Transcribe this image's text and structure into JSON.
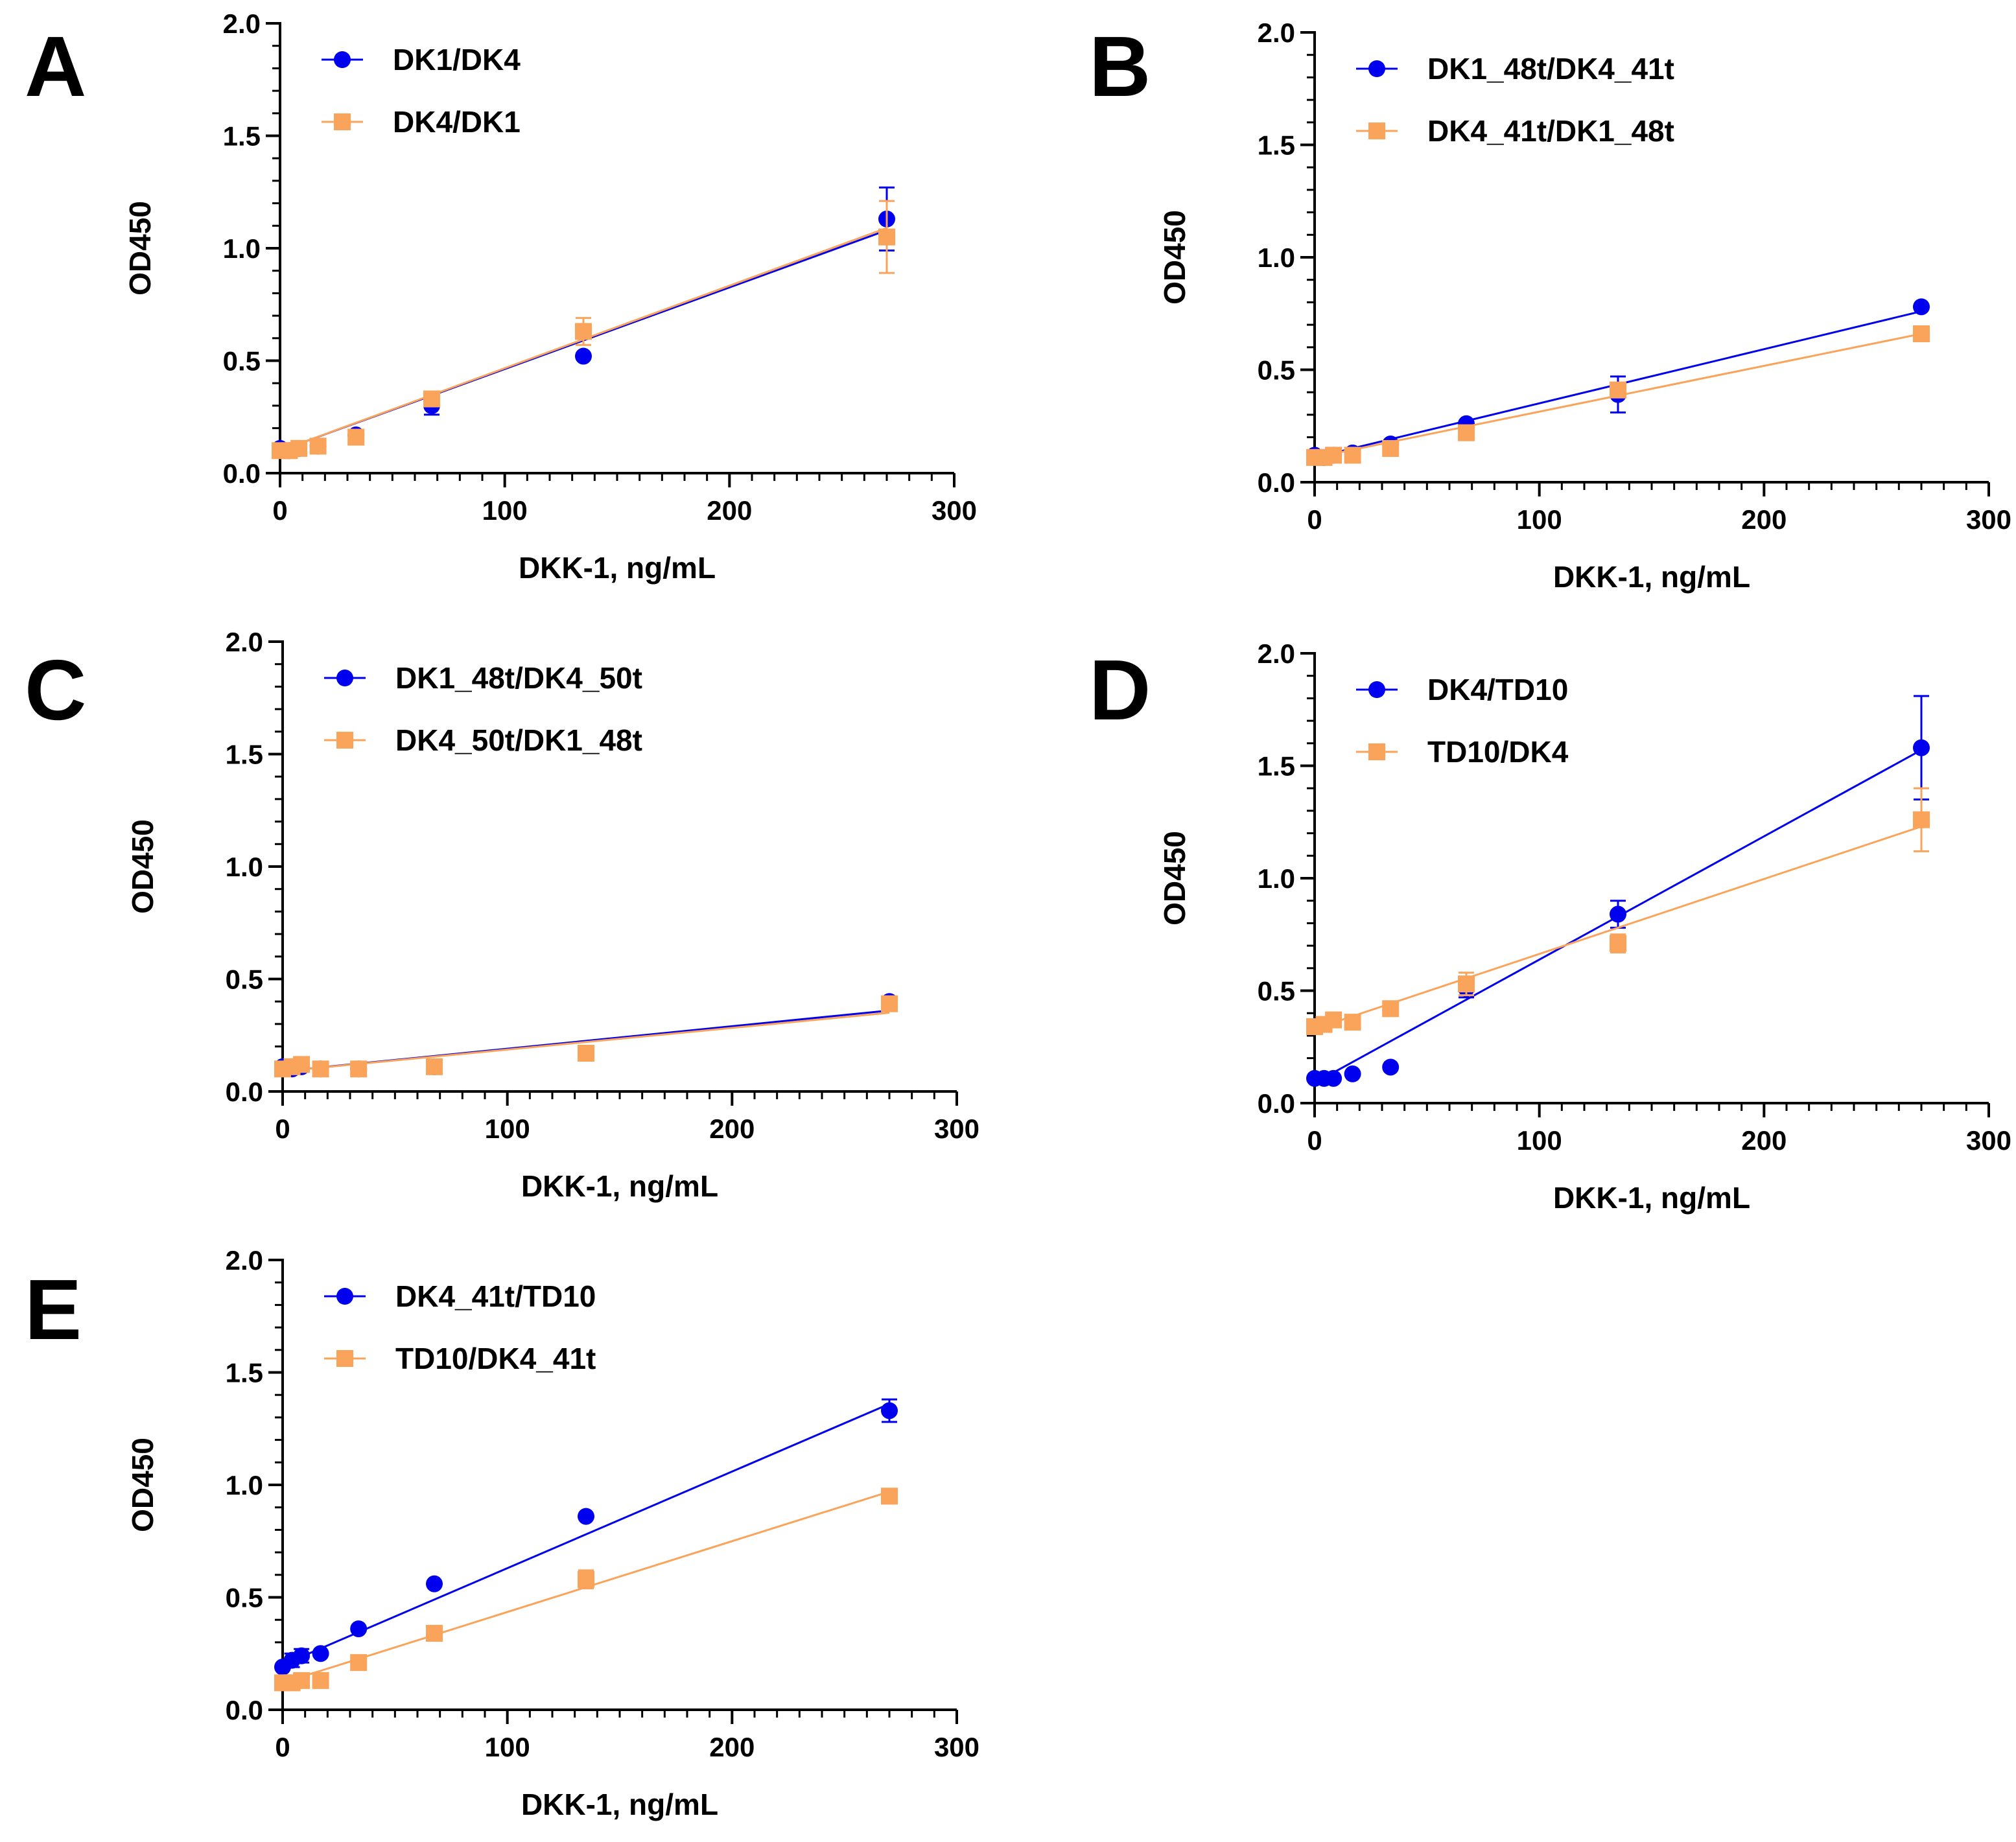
{
  "chart_data": [
    {
      "panel": "A",
      "type": "scatter",
      "xlabel": "DKK-1, ng/mL",
      "ylabel": "OD450",
      "xlim": [
        0,
        300
      ],
      "ylim": [
        0,
        2.0
      ],
      "xticks": [
        "0",
        "100",
        "200",
        "300"
      ],
      "yticks": [
        "0.0",
        "0.5",
        "1.0",
        "1.5",
        "2.0"
      ],
      "legend_position": "top-left",
      "series": [
        {
          "name": "DK1/DK4",
          "color": "#0000ee",
          "marker": "circle",
          "x": [
            0,
            4.2,
            8.4,
            16.9,
            33.8,
            67.5,
            135,
            270
          ],
          "y": [
            0.11,
            0.1,
            0.11,
            0.12,
            0.17,
            0.3,
            0.52,
            1.13
          ],
          "err": [
            0.01,
            0.01,
            0.01,
            0.01,
            0.01,
            0.04,
            0.02,
            0.14
          ],
          "fit": [
            [
              0,
              0.1
            ],
            [
              270,
              1.08
            ]
          ]
        },
        {
          "name": "DK4/DK1",
          "color": "#f9a45a",
          "marker": "square",
          "x": [
            0,
            4.2,
            8.4,
            16.9,
            33.8,
            67.5,
            135,
            270
          ],
          "y": [
            0.1,
            0.1,
            0.11,
            0.12,
            0.16,
            0.33,
            0.63,
            1.05
          ],
          "err": [
            0.01,
            0.01,
            0.01,
            0.01,
            0.01,
            0.03,
            0.06,
            0.16
          ],
          "fit": [
            [
              0,
              0.1
            ],
            [
              270,
              1.09
            ]
          ]
        }
      ]
    },
    {
      "panel": "B",
      "type": "scatter",
      "xlabel": "DKK-1, ng/mL",
      "ylabel": "OD450",
      "xlim": [
        0,
        300
      ],
      "ylim": [
        0,
        2.0
      ],
      "xticks": [
        "0",
        "100",
        "200",
        "300"
      ],
      "yticks": [
        "0.0",
        "0.5",
        "1.0",
        "1.5",
        "2.0"
      ],
      "legend_position": "top-left",
      "series": [
        {
          "name": "DK1_48t/DK4_41t",
          "color": "#0000ee",
          "marker": "circle",
          "x": [
            0,
            4.2,
            8.4,
            16.9,
            33.8,
            67.5,
            135,
            270
          ],
          "y": [
            0.12,
            0.11,
            0.12,
            0.13,
            0.17,
            0.26,
            0.39,
            0.78
          ],
          "err": [
            0.01,
            0.01,
            0.01,
            0.01,
            0.01,
            0.02,
            0.08,
            0.02
          ],
          "fit": [
            [
              0,
              0.11
            ],
            [
              270,
              0.76
            ]
          ]
        },
        {
          "name": "DK4_41t/DK1_48t",
          "color": "#f9a45a",
          "marker": "square",
          "x": [
            0,
            4.2,
            8.4,
            16.9,
            33.8,
            67.5,
            135,
            270
          ],
          "y": [
            0.11,
            0.11,
            0.12,
            0.12,
            0.15,
            0.22,
            0.41,
            0.66
          ],
          "err": [
            0.01,
            0.01,
            0.01,
            0.01,
            0.01,
            0.02,
            0.03,
            0.02
          ],
          "fit": [
            [
              0,
              0.11
            ],
            [
              270,
              0.66
            ]
          ]
        }
      ]
    },
    {
      "panel": "C",
      "type": "scatter",
      "xlabel": "DKK-1, ng/mL",
      "ylabel": "OD450",
      "xlim": [
        0,
        300
      ],
      "ylim": [
        0,
        2.0
      ],
      "xticks": [
        "0",
        "100",
        "200",
        "300"
      ],
      "yticks": [
        "0.0",
        "0.5",
        "1.0",
        "1.5",
        "2.0"
      ],
      "legend_position": "top-left",
      "series": [
        {
          "name": "DK1_48t/DK4_50t",
          "color": "#0000ee",
          "marker": "circle",
          "x": [
            0,
            4.2,
            8.4,
            16.9,
            33.8,
            67.5,
            135,
            270
          ],
          "y": [
            0.11,
            0.1,
            0.11,
            0.1,
            0.1,
            0.11,
            0.17,
            0.4
          ],
          "err": [
            0.01,
            0.01,
            0.01,
            0.01,
            0.01,
            0.01,
            0.01,
            0.02
          ],
          "fit": [
            [
              0,
              0.09
            ],
            [
              270,
              0.36
            ]
          ]
        },
        {
          "name": "DK4_50t/DK1_48t",
          "color": "#f9a45a",
          "marker": "square",
          "x": [
            0,
            4.2,
            8.4,
            16.9,
            33.8,
            67.5,
            135,
            270
          ],
          "y": [
            0.1,
            0.11,
            0.12,
            0.1,
            0.1,
            0.11,
            0.17,
            0.39
          ],
          "err": [
            0.01,
            0.02,
            0.02,
            0.01,
            0.01,
            0.01,
            0.01,
            0.02
          ],
          "fit": [
            [
              0,
              0.09
            ],
            [
              270,
              0.35
            ]
          ]
        }
      ]
    },
    {
      "panel": "D",
      "type": "scatter",
      "xlabel": "DKK-1, ng/mL",
      "ylabel": "OD450",
      "xlim": [
        0,
        300
      ],
      "ylim": [
        0,
        2.0
      ],
      "xticks": [
        "0",
        "100",
        "200",
        "300"
      ],
      "yticks": [
        "0.0",
        "0.5",
        "1.0",
        "1.5",
        "2.0"
      ],
      "legend_position": "top-left",
      "series": [
        {
          "name": "DK4/TD10",
          "color": "#0000ee",
          "marker": "circle",
          "x": [
            0,
            4.2,
            8.4,
            16.9,
            33.8,
            67.5,
            135,
            270
          ],
          "y": [
            0.11,
            0.11,
            0.11,
            0.13,
            0.16,
            0.51,
            0.84,
            1.58
          ],
          "err": [
            0.01,
            0.01,
            0.01,
            0.01,
            0.01,
            0.04,
            0.06,
            0.23
          ],
          "fit": [
            [
              0,
              0.09
            ],
            [
              270,
              1.57
            ]
          ]
        },
        {
          "name": "TD10/DK4",
          "color": "#f9a45a",
          "marker": "square",
          "x": [
            0,
            4.2,
            8.4,
            16.9,
            33.8,
            67.5,
            135,
            270
          ],
          "y": [
            0.34,
            0.35,
            0.37,
            0.36,
            0.42,
            0.53,
            0.71,
            1.26
          ],
          "err": [
            0.02,
            0.01,
            0.01,
            0.02,
            0.02,
            0.05,
            0.04,
            0.14
          ],
          "fit": [
            [
              0,
              0.33
            ],
            [
              270,
              1.23
            ]
          ]
        }
      ]
    },
    {
      "panel": "E",
      "type": "scatter",
      "xlabel": "DKK-1, ng/mL",
      "ylabel": "OD450",
      "xlim": [
        0,
        300
      ],
      "ylim": [
        0,
        2.0
      ],
      "xticks": [
        "0",
        "100",
        "200",
        "300"
      ],
      "yticks": [
        "0.0",
        "0.5",
        "1.0",
        "1.5",
        "2.0"
      ],
      "legend_position": "top-left",
      "series": [
        {
          "name": "DK4_41t/TD10",
          "color": "#0000ee",
          "marker": "circle",
          "x": [
            0,
            4.2,
            8.4,
            16.9,
            33.8,
            67.5,
            135,
            270
          ],
          "y": [
            0.19,
            0.22,
            0.24,
            0.25,
            0.36,
            0.56,
            0.86,
            1.33
          ],
          "err": [
            0.02,
            0.03,
            0.03,
            0.02,
            0.02,
            0.02,
            0.02,
            0.05
          ],
          "fit": [
            [
              0,
              0.2
            ],
            [
              270,
              1.36
            ]
          ]
        },
        {
          "name": "TD10/DK4_41t",
          "color": "#f9a45a",
          "marker": "square",
          "x": [
            0,
            4.2,
            8.4,
            16.9,
            33.8,
            67.5,
            135,
            270
          ],
          "y": [
            0.12,
            0.12,
            0.13,
            0.13,
            0.21,
            0.34,
            0.58,
            0.95
          ],
          "err": [
            0.01,
            0.01,
            0.01,
            0.01,
            0.02,
            0.02,
            0.04,
            0.02
          ],
          "fit": [
            [
              0,
              0.12
            ],
            [
              270,
              0.97
            ]
          ]
        }
      ]
    }
  ]
}
